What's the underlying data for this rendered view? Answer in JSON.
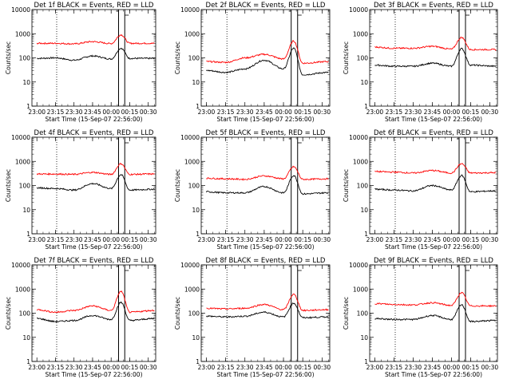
{
  "common": {
    "ylabel": "Counts/sec",
    "xlabel": "Start Time (15-Sep-07 22:56:00)",
    "x_ticks": [
      "23:00",
      "23:15",
      "23:30",
      "23:45",
      "00:00",
      "00:15",
      "00:30"
    ],
    "y_ticks": [
      "1",
      "10",
      "100",
      "1000",
      "10000"
    ],
    "colors": {
      "events": "#000000",
      "lld": "#ff0000",
      "background": "#ffffff"
    }
  },
  "chart_data": [
    {
      "type": "line",
      "title": "Det 1f BLACK = Events, RED = LLD",
      "yscale": "log",
      "ylim": [
        1,
        10000
      ],
      "xlim": [
        "22:56",
        "00:36"
      ],
      "markers": [
        "23:16",
        "00:06",
        "00:11"
      ],
      "series": [
        {
          "color": "#000000",
          "points": [
            [
              "23:00",
              95
            ],
            [
              "23:15",
              100
            ],
            [
              "23:30",
              80
            ],
            [
              "23:45",
              120
            ],
            [
              "00:00",
              90
            ],
            [
              "00:08",
              250
            ],
            [
              "00:15",
              95
            ],
            [
              "00:35",
              95
            ]
          ]
        },
        {
          "color": "#ff0000",
          "points": [
            [
              "23:00",
              400
            ],
            [
              "23:15",
              400
            ],
            [
              "23:30",
              380
            ],
            [
              "23:45",
              470
            ],
            [
              "00:00",
              390
            ],
            [
              "00:08",
              900
            ],
            [
              "00:15",
              400
            ],
            [
              "00:35",
              400
            ]
          ]
        }
      ]
    },
    {
      "type": "line",
      "title": "Det 2f BLACK = Events, RED = LLD",
      "yscale": "log",
      "ylim": [
        1,
        10000
      ],
      "xlim": [
        "22:56",
        "00:36"
      ],
      "markers": [
        "23:16",
        "00:06",
        "00:11"
      ],
      "series": [
        {
          "color": "#000000",
          "points": [
            [
              "23:00",
              30
            ],
            [
              "23:15",
              25
            ],
            [
              "23:30",
              35
            ],
            [
              "23:45",
              80
            ],
            [
              "00:00",
              35
            ],
            [
              "00:08",
              250
            ],
            [
              "00:15",
              20
            ],
            [
              "00:35",
              25
            ]
          ]
        },
        {
          "color": "#ff0000",
          "points": [
            [
              "23:00",
              70
            ],
            [
              "23:15",
              65
            ],
            [
              "23:30",
              100
            ],
            [
              "23:45",
              140
            ],
            [
              "00:00",
              90
            ],
            [
              "00:08",
              500
            ],
            [
              "00:15",
              60
            ],
            [
              "00:35",
              70
            ]
          ]
        }
      ]
    },
    {
      "type": "line",
      "title": "Det 3f BLACK = Events, RED = LLD",
      "yscale": "log",
      "ylim": [
        1,
        10000
      ],
      "xlim": [
        "22:56",
        "00:36"
      ],
      "markers": [
        "23:16",
        "00:06",
        "00:11"
      ],
      "series": [
        {
          "color": "#000000",
          "points": [
            [
              "23:00",
              50
            ],
            [
              "23:15",
              45
            ],
            [
              "23:30",
              45
            ],
            [
              "23:45",
              60
            ],
            [
              "00:00",
              45
            ],
            [
              "00:08",
              240
            ],
            [
              "00:15",
              50
            ],
            [
              "00:35",
              45
            ]
          ]
        },
        {
          "color": "#ff0000",
          "points": [
            [
              "23:00",
              280
            ],
            [
              "23:15",
              250
            ],
            [
              "23:30",
              250
            ],
            [
              "23:45",
              300
            ],
            [
              "00:00",
              230
            ],
            [
              "00:08",
              700
            ],
            [
              "00:15",
              220
            ],
            [
              "00:35",
              220
            ]
          ]
        }
      ]
    },
    {
      "type": "line",
      "title": "Det 4f BLACK = Events, RED = LLD",
      "yscale": "log",
      "ylim": [
        1,
        10000
      ],
      "xlim": [
        "22:56",
        "00:36"
      ],
      "markers": [
        "23:16",
        "00:06",
        "00:11"
      ],
      "series": [
        {
          "color": "#000000",
          "points": [
            [
              "23:00",
              80
            ],
            [
              "23:15",
              75
            ],
            [
              "23:30",
              65
            ],
            [
              "23:45",
              120
            ],
            [
              "00:00",
              75
            ],
            [
              "00:08",
              280
            ],
            [
              "00:15",
              65
            ],
            [
              "00:35",
              70
            ]
          ]
        },
        {
          "color": "#ff0000",
          "points": [
            [
              "23:00",
              300
            ],
            [
              "23:15",
              300
            ],
            [
              "23:30",
              290
            ],
            [
              "23:45",
              350
            ],
            [
              "00:00",
              290
            ],
            [
              "00:08",
              800
            ],
            [
              "00:15",
              290
            ],
            [
              "00:35",
              300
            ]
          ]
        }
      ]
    },
    {
      "type": "line",
      "title": "Det 5f BLACK = Events, RED = LLD",
      "yscale": "log",
      "ylim": [
        1,
        10000
      ],
      "xlim": [
        "22:56",
        "00:36"
      ],
      "markers": [
        "23:16",
        "00:06",
        "00:11"
      ],
      "series": [
        {
          "color": "#000000",
          "points": [
            [
              "23:00",
              55
            ],
            [
              "23:15",
              50
            ],
            [
              "23:30",
              50
            ],
            [
              "23:45",
              90
            ],
            [
              "00:00",
              50
            ],
            [
              "00:08",
              260
            ],
            [
              "00:15",
              45
            ],
            [
              "00:35",
              50
            ]
          ]
        },
        {
          "color": "#ff0000",
          "points": [
            [
              "23:00",
              200
            ],
            [
              "23:15",
              190
            ],
            [
              "23:30",
              180
            ],
            [
              "23:45",
              250
            ],
            [
              "00:00",
              190
            ],
            [
              "00:08",
              600
            ],
            [
              "00:15",
              180
            ],
            [
              "00:35",
              190
            ]
          ]
        }
      ]
    },
    {
      "type": "line",
      "title": "Det 6f BLACK = Events, RED = LLD",
      "yscale": "log",
      "ylim": [
        1,
        10000
      ],
      "xlim": [
        "22:56",
        "00:36"
      ],
      "markers": [
        "23:16",
        "00:06",
        "00:11"
      ],
      "series": [
        {
          "color": "#000000",
          "points": [
            [
              "23:00",
              70
            ],
            [
              "23:15",
              65
            ],
            [
              "23:30",
              60
            ],
            [
              "23:45",
              100
            ],
            [
              "00:00",
              65
            ],
            [
              "00:08",
              260
            ],
            [
              "00:15",
              55
            ],
            [
              "00:35",
              60
            ]
          ]
        },
        {
          "color": "#ff0000",
          "points": [
            [
              "23:00",
              380
            ],
            [
              "23:15",
              360
            ],
            [
              "23:30",
              330
            ],
            [
              "23:45",
              420
            ],
            [
              "00:00",
              330
            ],
            [
              "00:08",
              800
            ],
            [
              "00:15",
              330
            ],
            [
              "00:35",
              340
            ]
          ]
        }
      ]
    },
    {
      "type": "line",
      "title": "Det 7f BLACK = Events, RED = LLD",
      "yscale": "log",
      "ylim": [
        1,
        10000
      ],
      "xlim": [
        "22:56",
        "00:36"
      ],
      "markers": [
        "23:16",
        "00:06",
        "00:11"
      ],
      "series": [
        {
          "color": "#000000",
          "points": [
            [
              "23:00",
              60
            ],
            [
              "23:15",
              45
            ],
            [
              "23:30",
              50
            ],
            [
              "23:45",
              80
            ],
            [
              "00:00",
              55
            ],
            [
              "00:08",
              280
            ],
            [
              "00:15",
              50
            ],
            [
              "00:35",
              60
            ]
          ]
        },
        {
          "color": "#ff0000",
          "points": [
            [
              "23:00",
              140
            ],
            [
              "23:15",
              110
            ],
            [
              "23:30",
              130
            ],
            [
              "23:45",
              200
            ],
            [
              "00:00",
              130
            ],
            [
              "00:08",
              800
            ],
            [
              "00:15",
              110
            ],
            [
              "00:35",
              130
            ]
          ]
        }
      ]
    },
    {
      "type": "line",
      "title": "Det 8f BLACK = Events, RED = LLD",
      "yscale": "log",
      "ylim": [
        1,
        10000
      ],
      "xlim": [
        "22:56",
        "00:36"
      ],
      "markers": [
        "23:16",
        "00:06",
        "00:11"
      ],
      "series": [
        {
          "color": "#000000",
          "points": [
            [
              "23:00",
              75
            ],
            [
              "23:15",
              70
            ],
            [
              "23:30",
              75
            ],
            [
              "23:45",
              110
            ],
            [
              "00:00",
              70
            ],
            [
              "00:08",
              260
            ],
            [
              "00:15",
              65
            ],
            [
              "00:35",
              70
            ]
          ]
        },
        {
          "color": "#ff0000",
          "points": [
            [
              "23:00",
              160
            ],
            [
              "23:15",
              150
            ],
            [
              "23:30",
              160
            ],
            [
              "23:45",
              230
            ],
            [
              "00:00",
              140
            ],
            [
              "00:08",
              600
            ],
            [
              "00:15",
              130
            ],
            [
              "00:35",
              140
            ]
          ]
        }
      ]
    },
    {
      "type": "line",
      "title": "Det 9f BLACK = Events, RED = LLD",
      "yscale": "log",
      "ylim": [
        1,
        10000
      ],
      "xlim": [
        "22:56",
        "00:36"
      ],
      "markers": [
        "23:16",
        "00:06",
        "00:11"
      ],
      "series": [
        {
          "color": "#000000",
          "points": [
            [
              "23:00",
              60
            ],
            [
              "23:15",
              55
            ],
            [
              "23:30",
              55
            ],
            [
              "23:45",
              80
            ],
            [
              "00:00",
              55
            ],
            [
              "00:08",
              220
            ],
            [
              "00:15",
              45
            ],
            [
              "00:35",
              50
            ]
          ]
        },
        {
          "color": "#ff0000",
          "points": [
            [
              "23:00",
              250
            ],
            [
              "23:15",
              230
            ],
            [
              "23:30",
              220
            ],
            [
              "23:45",
              270
            ],
            [
              "00:00",
              210
            ],
            [
              "00:08",
              700
            ],
            [
              "00:15",
              200
            ],
            [
              "00:35",
              200
            ]
          ]
        }
      ]
    }
  ]
}
